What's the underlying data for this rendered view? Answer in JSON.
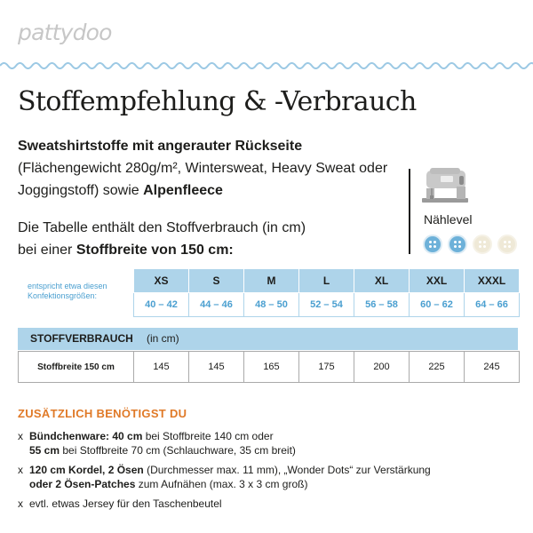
{
  "brand": {
    "logo": "pattydoo"
  },
  "title": "Stoffempfehlung & -Verbrauch",
  "intro": {
    "fabric_bold": "Sweatshirtstoffe mit angerauter Rückseite",
    "fabric_rest": "(Flächengewicht 280g/m², Wintersweat, Heavy Sweat oder Joggingstoff) sowie",
    "fabric_alt": "Alpenfleece"
  },
  "sewing_level": {
    "label": "Nählevel",
    "level": 2,
    "max": 4,
    "colors": {
      "active": "#6db1d9",
      "inactive": "#efe9d7"
    }
  },
  "table_intro": {
    "line1": "Die Tabelle enthält den Stoffverbrauch (in cm)",
    "line2_prefix": "bei einer",
    "line2_bold": "Stoffbreite von 150 cm:"
  },
  "size_table": {
    "side_label": "entspricht etwa diesen Konfektionsgrößen:",
    "sizes": [
      "XS",
      "S",
      "M",
      "L",
      "XL",
      "XXL",
      "XXXL"
    ],
    "ranges": [
      "40 – 42",
      "44 – 46",
      "48 – 50",
      "52 – 54",
      "56 – 58",
      "60 – 62",
      "64 – 66"
    ]
  },
  "consumption": {
    "title": "STOFFVERBRAUCH",
    "unit": "(in cm)",
    "row_label": "Stoffbreite 150 cm",
    "values": [
      "145",
      "145",
      "165",
      "175",
      "200",
      "225",
      "245"
    ]
  },
  "extras": {
    "heading": "ZUSÄTZLICH BENÖTIGST DU",
    "bullet": "x",
    "items": [
      {
        "bold1": "Bündchenware: 40 cm",
        "text1": " bei Stoffbreite 140 cm oder",
        "bold2": "55 cm",
        "text2": " bei Stoffbreite 70 cm (Schlauchware, 35 cm breit)"
      },
      {
        "bold1": "120 cm Kordel, 2 Ösen",
        "text1": " (Durchmesser max. 11 mm), „Wonder Dots“ zur Verstärkung",
        "bold2": "oder 2 Ösen-Patches",
        "text2": " zum Aufnähen (max. 3 x 3 cm groß)"
      },
      {
        "text1": "evtl. etwas Jersey für den Taschenbeutel"
      }
    ]
  },
  "colors": {
    "accent_blue": "#aed4ea",
    "text_blue": "#4a9fd0",
    "accent_orange": "#e07a28"
  }
}
